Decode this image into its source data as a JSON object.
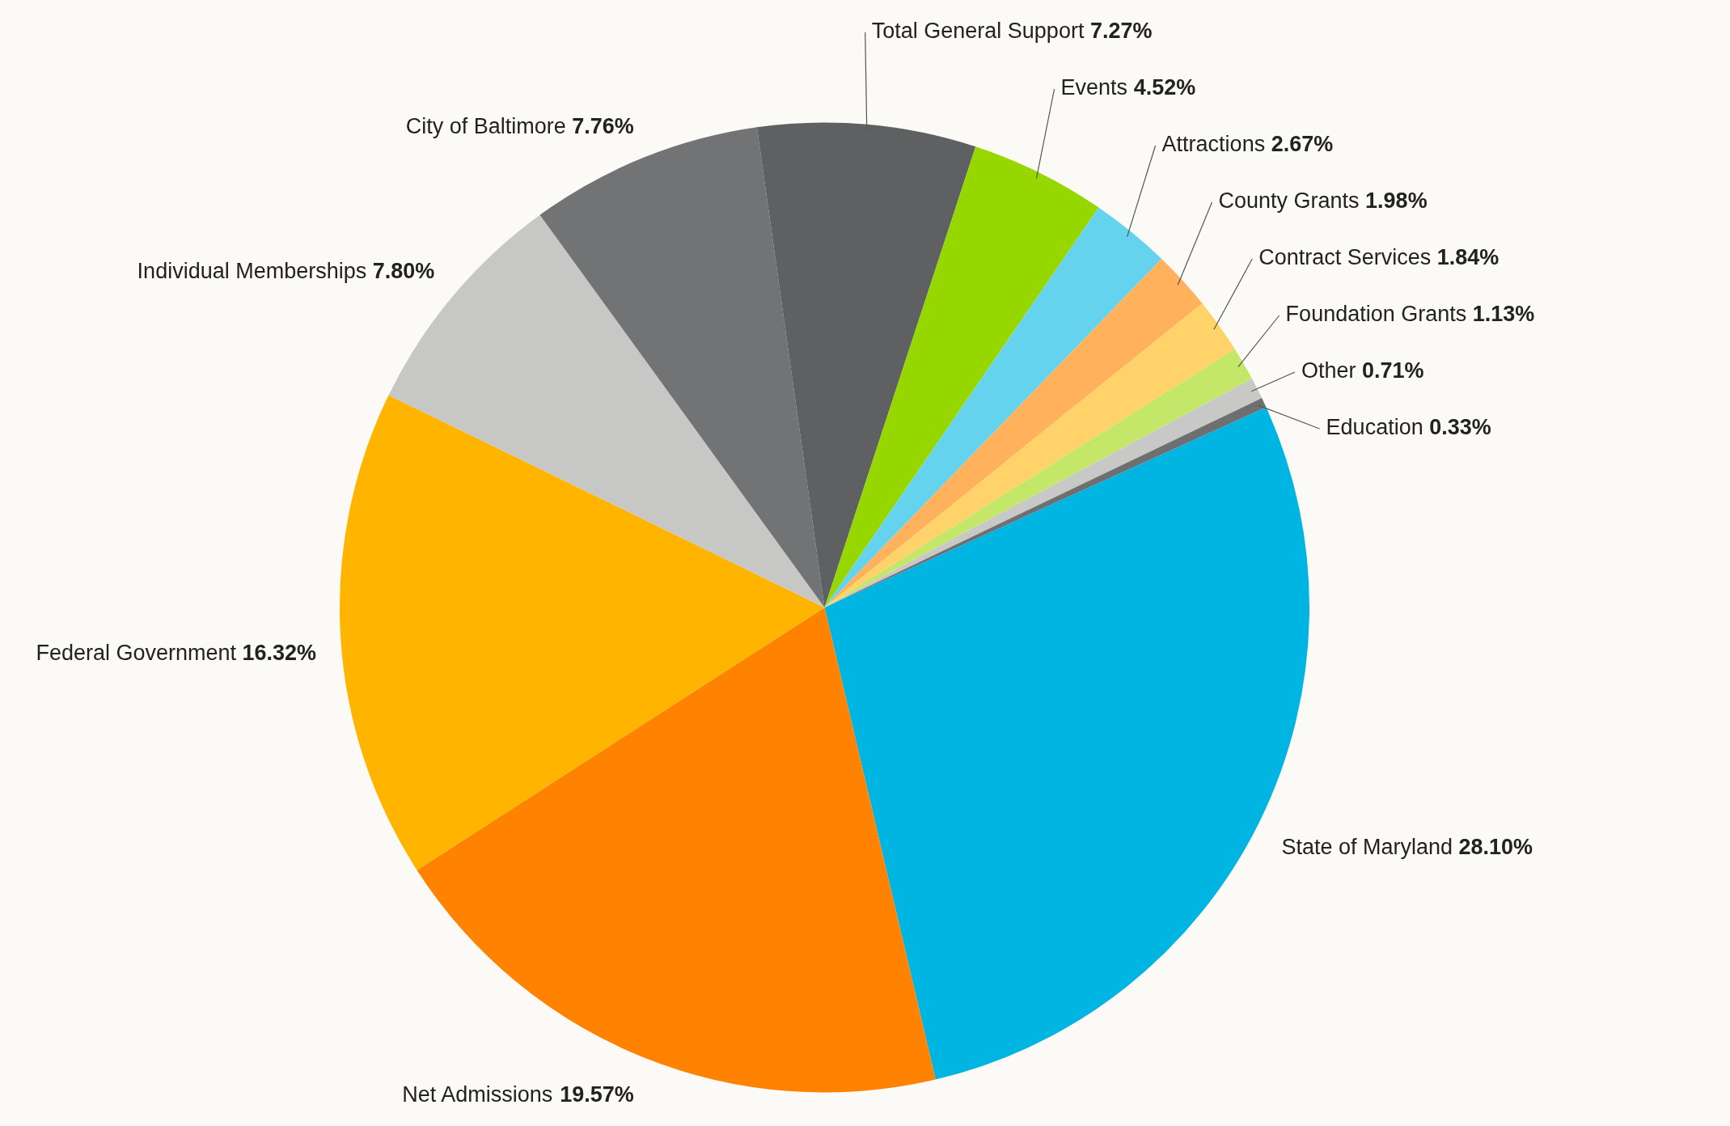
{
  "chart_data": {
    "type": "pie",
    "categories": [
      "State of Maryland",
      "Net Admissions",
      "Federal Government",
      "Individual Memberships",
      "City of Baltimore",
      "Total General Support",
      "Events",
      "Attractions",
      "County Grants",
      "Contract Services",
      "Foundation Grants",
      "Other",
      "Education"
    ],
    "values": [
      28.1,
      19.57,
      16.32,
      7.8,
      7.76,
      7.27,
      4.52,
      2.67,
      1.98,
      1.84,
      1.13,
      0.71,
      0.33
    ],
    "value_labels": [
      "28.10%",
      "19.57%",
      "16.32%",
      "7.80%",
      "7.76%",
      "7.27%",
      "4.52%",
      "2.67%",
      "1.98%",
      "1.84%",
      "1.13%",
      "0.71%",
      "0.33%"
    ],
    "colors": [
      "#00b5e2",
      "#ff8200",
      "#ffb500",
      "#c7c8c6",
      "#717374",
      "#5f6062",
      "#97d700",
      "#66d3ee",
      "#ffb25b",
      "#ffd36a",
      "#c4e76a",
      "#c8c9c7",
      "#6e6f70"
    ],
    "legend": false
  }
}
